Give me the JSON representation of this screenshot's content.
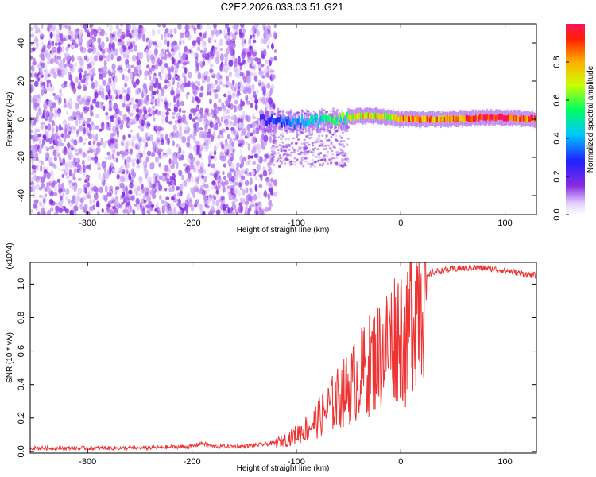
{
  "title": "C2E2.2026.033.03.51.G21",
  "chart_data": [
    {
      "type": "heatmap",
      "xlabel": "Height of straight line (km)",
      "ylabel": "Frequency (Hz)",
      "xlim": [
        -355,
        130
      ],
      "ylim": [
        -50,
        50
      ],
      "xticks": [
        -300,
        -200,
        -100,
        0,
        100
      ],
      "yticks": [
        -40,
        -20,
        0,
        20,
        40
      ],
      "xtick_labels": [
        "-300",
        "-200",
        "-100",
        "0",
        "100"
      ],
      "ytick_labels": [
        "-40",
        "-20",
        "0",
        "20",
        "40"
      ],
      "colorbar": {
        "label": "Normalized spectral amplitude",
        "range": [
          0,
          1
        ],
        "ticks": [
          0.0,
          0.2,
          0.4,
          0.6,
          0.8
        ],
        "tick_labels": [
          "0.0",
          "0.2",
          "0.4",
          "0.6",
          "0.8"
        ]
      },
      "signal_track": [
        {
          "x": -135,
          "freq": 0,
          "amp": 0.25
        },
        {
          "x": -100,
          "freq": -2,
          "amp": 0.4
        },
        {
          "x": -60,
          "freq": 0,
          "amp": 0.6
        },
        {
          "x": -35,
          "freq": 2,
          "amp": 0.8
        },
        {
          "x": -10,
          "freq": 1,
          "amp": 0.75
        },
        {
          "x": 0,
          "freq": 0,
          "amp": 0.9
        },
        {
          "x": 40,
          "freq": 0,
          "amp": 0.85
        },
        {
          "x": 90,
          "freq": 1,
          "amp": 1.0
        },
        {
          "x": 130,
          "freq": 0,
          "amp": 0.95
        }
      ]
    },
    {
      "type": "line",
      "xlabel": "Height of straight line (km)",
      "ylabel": "SNR (10 * v/v)",
      "scale_label": "(x10^4)",
      "xlim": [
        -355,
        130
      ],
      "ylim": [
        -0.01,
        1.13
      ],
      "xticks": [
        -300,
        -200,
        -100,
        0,
        100
      ],
      "yticks": [
        0.0,
        0.2,
        0.4,
        0.6,
        0.8,
        1.0
      ],
      "xtick_labels": [
        "-300",
        "-200",
        "-100",
        "0",
        "100"
      ],
      "ytick_labels": [
        "0.0",
        "0.2",
        "0.4",
        "0.6",
        "0.8",
        "1.0"
      ],
      "series": [
        {
          "name": "SNR",
          "color": "#ee3333",
          "x": [
            -355,
            -300,
            -250,
            -200,
            -190,
            -180,
            -150,
            -120,
            -110,
            -100,
            -90,
            -80,
            -70,
            -60,
            -50,
            -40,
            -30,
            -20,
            -10,
            0,
            5,
            10,
            20,
            30,
            50,
            70,
            90,
            110,
            130
          ],
          "y": [
            0.02,
            0.02,
            0.02,
            0.03,
            0.05,
            0.03,
            0.03,
            0.05,
            0.07,
            0.1,
            0.14,
            0.19,
            0.26,
            0.32,
            0.38,
            0.45,
            0.52,
            0.58,
            0.66,
            0.75,
            0.6,
            0.85,
            1.0,
            1.07,
            1.09,
            1.1,
            1.09,
            1.07,
            1.05
          ]
        }
      ]
    }
  ]
}
